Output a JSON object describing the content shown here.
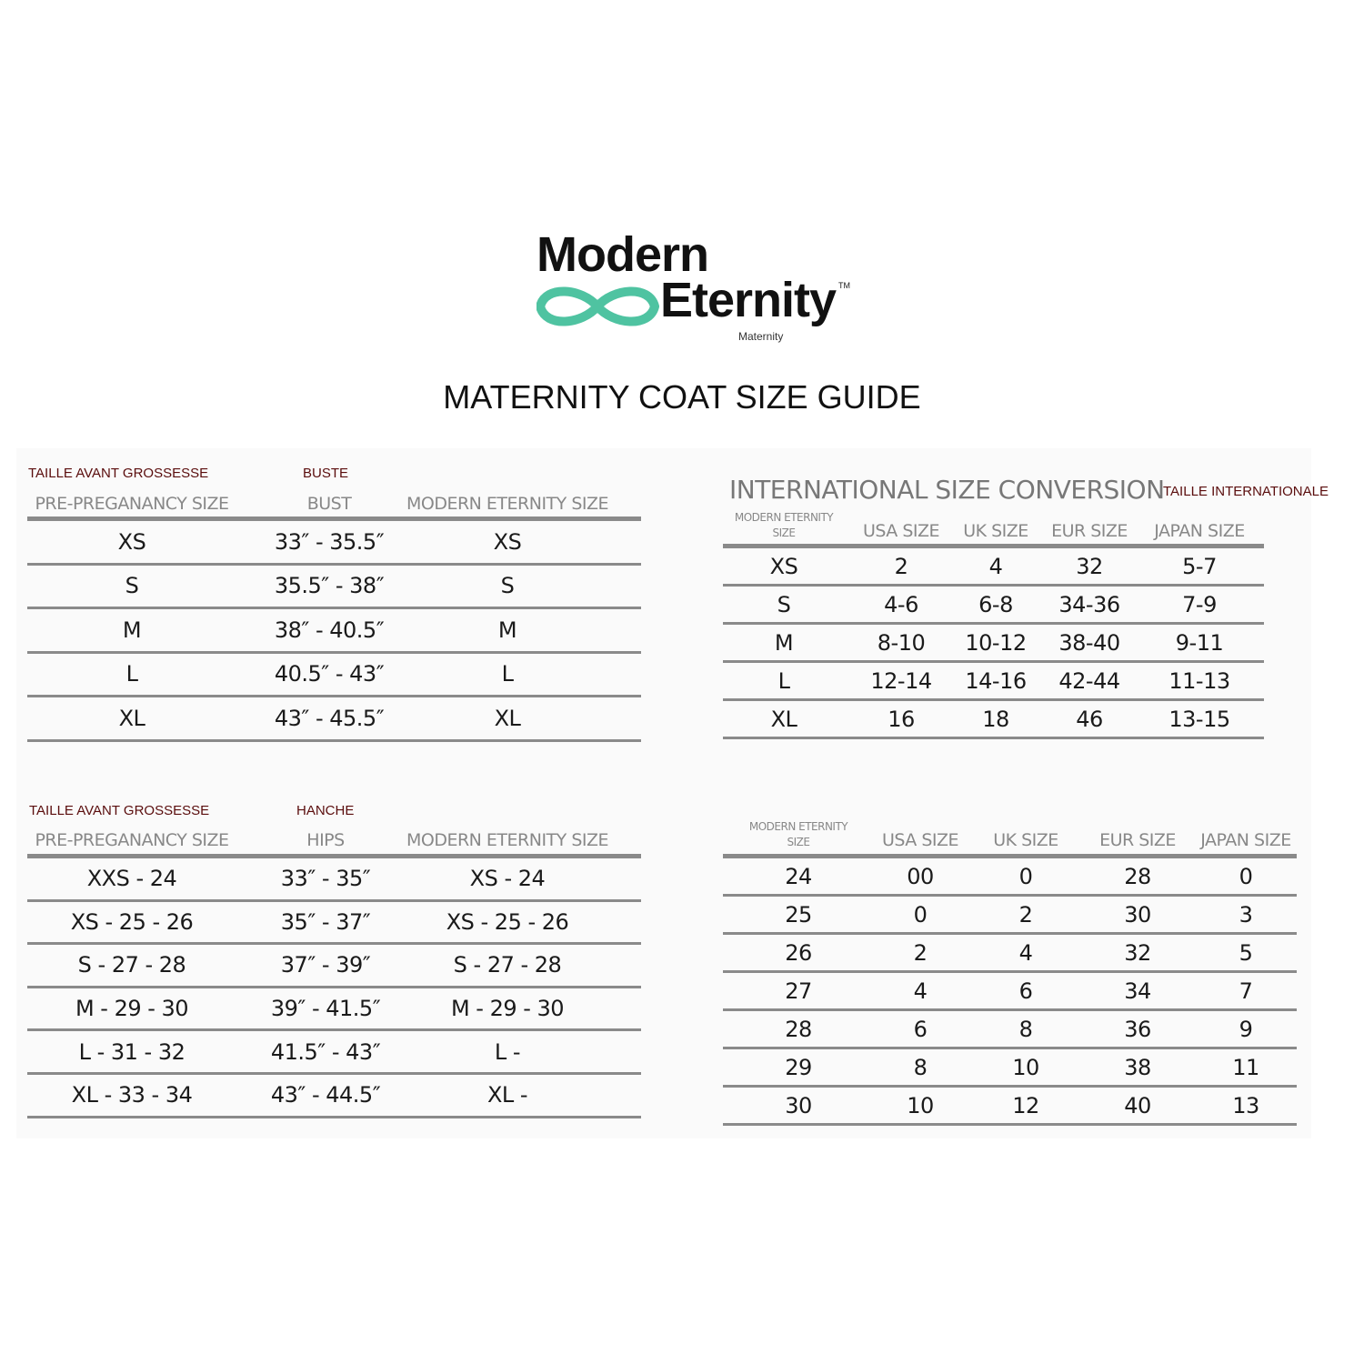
{
  "logo": {
    "line1": "Modern",
    "line2": "Eternity",
    "tm": "TM",
    "sub": "Maternity",
    "accent": "#4fc3a1"
  },
  "title": "MATERNITY COAT SIZE GUIDE",
  "bust_table": {
    "fr_labels": [
      "TAILLE AVANT GROSSESSE",
      "BUSTE"
    ],
    "headers": [
      "PRE-PREGANANCY SIZE",
      "BUST",
      "MODERN ETERNITY SIZE"
    ],
    "rows": [
      [
        "XS",
        "33″ - 35.5″",
        "XS"
      ],
      [
        "S",
        "35.5″ - 38″",
        "S"
      ],
      [
        "M",
        "38″ - 40.5″",
        "M"
      ],
      [
        "L",
        "40.5″ - 43″",
        "L"
      ],
      [
        "XL",
        "43″ - 45.5″",
        "XL"
      ]
    ]
  },
  "intl_table": {
    "title": "INTERNATIONAL SIZE CONVERSION",
    "fr_label": "TAILLE INTERNATIONALE",
    "headers": [
      "MODERN ETERNITY SIZE",
      "USA SIZE",
      "UK SIZE",
      "EUR SIZE",
      "JAPAN SIZE"
    ],
    "rows": [
      [
        "XS",
        "2",
        "4",
        "32",
        "5-7"
      ],
      [
        "S",
        "4-6",
        "6-8",
        "34-36",
        "7-9"
      ],
      [
        "M",
        "8-10",
        "10-12",
        "38-40",
        "9-11"
      ],
      [
        "L",
        "12-14",
        "14-16",
        "42-44",
        "11-13"
      ],
      [
        "XL",
        "16",
        "18",
        "46",
        "13-15"
      ]
    ]
  },
  "hips_table": {
    "fr_labels": [
      "TAILLE AVANT GROSSESSE",
      "HANCHE"
    ],
    "headers": [
      "PRE-PREGANANCY SIZE",
      "HIPS",
      "MODERN ETERNITY SIZE"
    ],
    "rows": [
      [
        "XXS - 24",
        "33″ - 35″",
        "XS - 24"
      ],
      [
        "XS - 25 - 26",
        "35″ - 37″",
        "XS - 25 - 26"
      ],
      [
        "S - 27 - 28",
        "37″ - 39″",
        "S - 27 - 28"
      ],
      [
        "M - 29 - 30",
        "39″ - 41.5″",
        "M - 29 - 30"
      ],
      [
        "L - 31 - 32",
        "41.5″ - 43″",
        "L -"
      ],
      [
        "XL - 33 - 34",
        "43″ - 44.5″",
        "XL -"
      ]
    ]
  },
  "numeric_table": {
    "headers": [
      "MODERN ETERNITY SIZE",
      "USA SIZE",
      "UK SIZE",
      "EUR SIZE",
      "JAPAN SIZE"
    ],
    "rows": [
      [
        "24",
        "00",
        "0",
        "28",
        "0"
      ],
      [
        "25",
        "0",
        "2",
        "30",
        "3"
      ],
      [
        "26",
        "2",
        "4",
        "32",
        "5"
      ],
      [
        "27",
        "4",
        "6",
        "34",
        "7"
      ],
      [
        "28",
        "6",
        "8",
        "36",
        "9"
      ],
      [
        "29",
        "8",
        "10",
        "38",
        "11"
      ],
      [
        "30",
        "10",
        "12",
        "40",
        "13"
      ]
    ]
  }
}
